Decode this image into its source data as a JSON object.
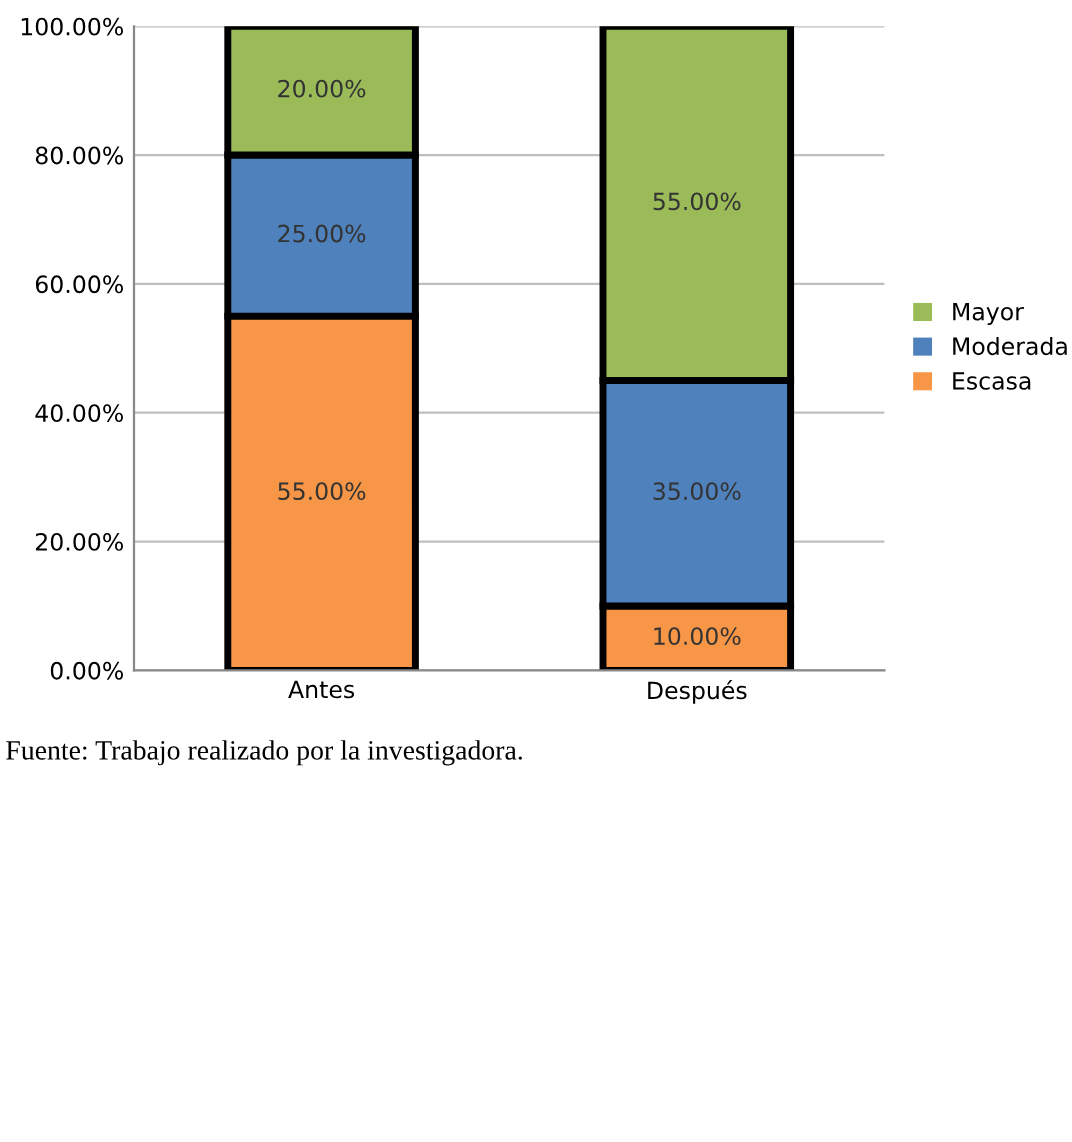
{
  "chart_data": {
    "type": "bar",
    "stacked": true,
    "categories": [
      "Antes",
      "Después"
    ],
    "series": [
      {
        "name": "Escasa",
        "color": "#f79646",
        "values": [
          55,
          10
        ],
        "value_labels": [
          "55.00%",
          "10.00%"
        ]
      },
      {
        "name": "Moderada",
        "color": "#4f81bd",
        "values": [
          25,
          35
        ],
        "value_labels": [
          "25.00%",
          "35.00%"
        ]
      },
      {
        "name": "Mayor",
        "color": "#9bbb59",
        "values": [
          20,
          55
        ],
        "value_labels": [
          "20.00%",
          "55.00%"
        ]
      }
    ],
    "ylim": [
      0,
      100
    ],
    "yticks": [
      {
        "value": 0,
        "label": "0.00%"
      },
      {
        "value": 20,
        "label": "20.00%"
      },
      {
        "value": 40,
        "label": "40.00%"
      },
      {
        "value": 60,
        "label": "60.00%"
      },
      {
        "value": 80,
        "label": "80.00%"
      },
      {
        "value": 100,
        "label": "100.00%"
      }
    ],
    "grid": "y",
    "legend": "right",
    "annotations": [
      "Fuente: Trabajo realizado por la investigadora."
    ]
  }
}
